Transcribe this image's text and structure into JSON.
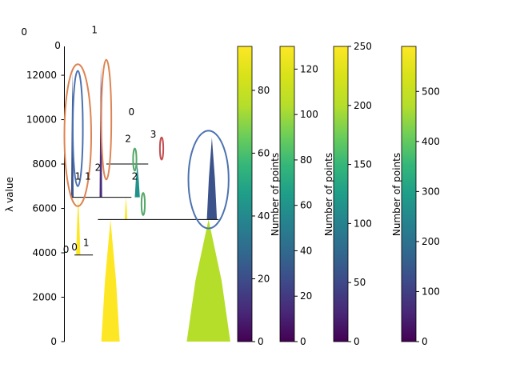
{
  "chart_data": {
    "type": "condensed-tree",
    "ylabel": "λ value",
    "ylim": [
      0,
      13300
    ],
    "yticks": [
      0,
      2000,
      4000,
      6000,
      8000,
      10000,
      12000
    ],
    "branches": [
      {
        "x": 0.22,
        "width": 0.11,
        "lambda_start": 0,
        "lambda_end": 5500,
        "color": "#fde725"
      },
      {
        "x": 0.73,
        "width": 0.26,
        "lambda_start": 0,
        "lambda_end": 5500,
        "color": "#b5de2b"
      },
      {
        "x": 0.07,
        "width": 0.025,
        "lambda_start": 3900,
        "lambda_end": 6500,
        "color": "#fde725"
      },
      {
        "x": 0.36,
        "width": 0.015,
        "lambda_start": 5500,
        "lambda_end": 6500,
        "color": "#fde725"
      },
      {
        "x": 0.04,
        "width": 0.015,
        "lambda_start": 6500,
        "lambda_end": 12200,
        "color": "#3b528b"
      },
      {
        "x": 0.21,
        "width": 0.015,
        "lambda_start": 6500,
        "lambda_end": 12500,
        "color": "#472d7b"
      },
      {
        "x": 0.42,
        "width": 0.03,
        "lambda_start": 6500,
        "lambda_end": 8000,
        "color": "#21918c"
      },
      {
        "x": 0.85,
        "width": 0.06,
        "lambda_start": 5500,
        "lambda_end": 9200,
        "color": "#3b528b"
      }
    ],
    "annotations": [
      "0",
      "1",
      "0",
      "1",
      "0",
      "2",
      "3",
      "2",
      "0",
      "1",
      "2",
      "0",
      "1"
    ],
    "colorbars": [
      {
        "label": "",
        "range": [
          0,
          94
        ],
        "ticks": [
          0,
          20,
          40,
          60,
          80
        ]
      },
      {
        "label": "Number of points",
        "range": [
          0,
          130
        ],
        "ticks": [
          0,
          20,
          40,
          60,
          80,
          100,
          120
        ]
      },
      {
        "label": "Number of points",
        "range": [
          0,
          250
        ],
        "ticks": [
          0,
          50,
          100,
          150,
          200,
          250
        ]
      },
      {
        "label": "Number of points",
        "range": [
          0,
          590
        ],
        "ticks": [
          0,
          100,
          200,
          300,
          400,
          500
        ]
      }
    ]
  }
}
